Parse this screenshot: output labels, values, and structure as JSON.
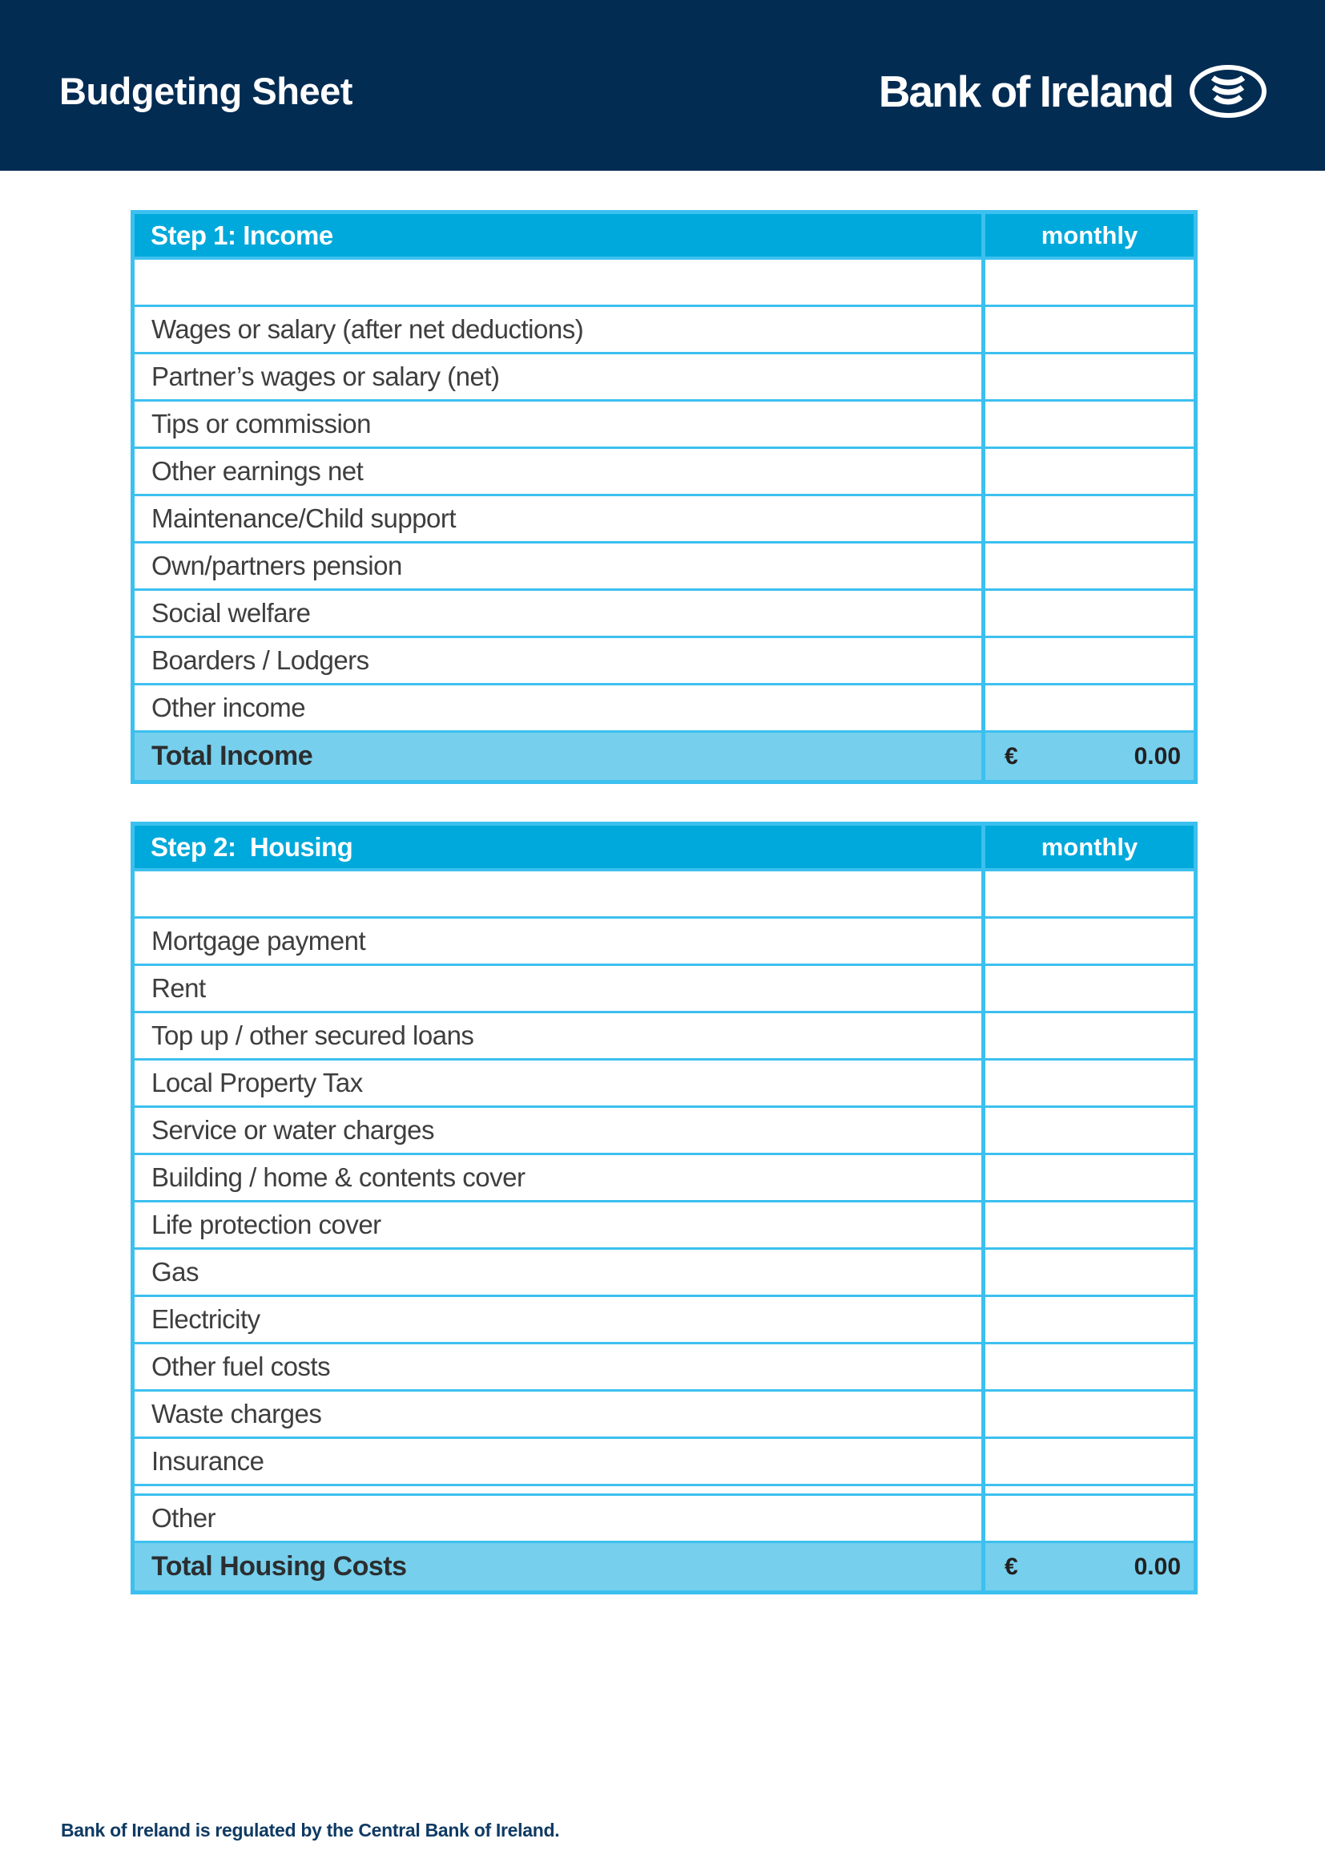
{
  "header": {
    "title": "Budgeting Sheet",
    "brand": "Bank of Ireland",
    "logo_icon": "bank-of-ireland-tree-of-life-icon"
  },
  "tables": [
    {
      "title": "Step 1: Income",
      "column_header": "monthly",
      "rows": [
        "Wages or salary (after net deductions)",
        "Partner’s wages or salary (net)",
        "Tips or commission",
        "Other earnings net",
        "Maintenance/Child support",
        "Own/partners pension",
        "Social welfare",
        "Boarders / Lodgers",
        "Other income"
      ],
      "total": {
        "label": "Total Income",
        "currency": "€",
        "value": "0.00"
      }
    },
    {
      "title": "Step 2:  Housing",
      "column_header": "monthly",
      "rows": [
        "Mortgage payment",
        "Rent",
        "Top up / other secured loans",
        "Local Property Tax",
        "Service or water charges",
        "Building / home & contents cover",
        "Life protection cover",
        "Gas",
        "Electricity",
        "Other fuel costs",
        "Waste charges",
        "Insurance"
      ],
      "detached_rows": [
        "Other"
      ],
      "total": {
        "label": "Total Housing Costs",
        "currency": "€",
        "value": "0.00"
      }
    }
  ],
  "footer": {
    "text": "Bank of Ireland is regulated by the Central Bank of Ireland."
  },
  "colors": {
    "navy": "#032c53",
    "header_cyan": "#00a9db",
    "grid_cyan": "#3cc0ef",
    "total_row_blue": "#76cfec",
    "row_text": "#3e3e3e",
    "footer_text": "#0f3a63"
  }
}
